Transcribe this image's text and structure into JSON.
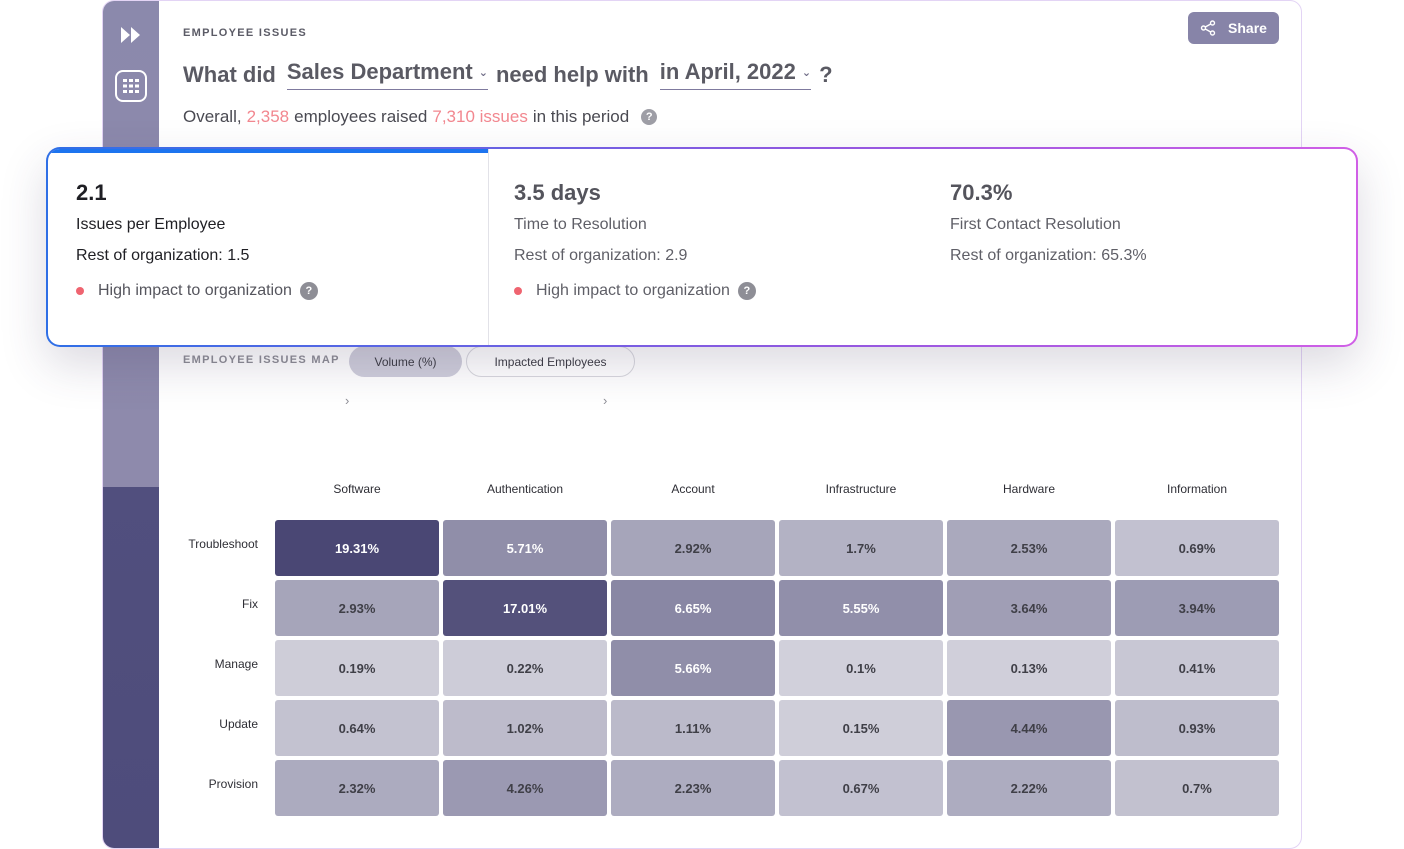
{
  "header": {
    "section_label": "EMPLOYEE ISSUES",
    "question_prefix": "What did",
    "department": "Sales Department",
    "question_middle": "need help with",
    "period": "in April, 2022",
    "question_suffix": "?",
    "overall_prefix": "Overall,",
    "employees_count": "2,358",
    "overall_middle": "employees raised",
    "issues_count": "7,310 issues",
    "overall_suffix": "in this period",
    "share_label": "Share"
  },
  "icons": {
    "sidebar_forward": "fast-forward-icon",
    "sidebar_grid": "grid-icon",
    "share": "share-icon",
    "help": "help-icon",
    "help_glyph": "?",
    "chevron": "›"
  },
  "kpis": [
    {
      "value": "2.1",
      "name": "Issues per Employee",
      "rest": "Rest of organization: 1.5",
      "impact": "High impact to organization",
      "active": true
    },
    {
      "value": "3.5 days",
      "name": "Time to Resolution",
      "rest": "Rest of organization: 2.9",
      "impact": "High impact to organization",
      "active": false
    },
    {
      "value": "70.3%",
      "name": "First Contact Resolution",
      "rest": "Rest of organization: 65.3%",
      "impact": "",
      "active": false
    }
  ],
  "map": {
    "label": "EMPLOYEE ISSUES MAP",
    "toggle_volume": "Volume (%)",
    "toggle_impacted": "Impacted Employees",
    "active_toggle": "Volume (%)"
  },
  "chart_data": {
    "type": "heatmap",
    "columns": [
      "Software",
      "Authentication",
      "Account",
      "Infrastructure",
      "Hardware",
      "Information"
    ],
    "rows": [
      "Troubleshoot",
      "Fix",
      "Manage",
      "Update",
      "Provision"
    ],
    "values": [
      [
        "19.31%",
        "5.71%",
        "2.92%",
        "1.7%",
        "2.53%",
        "0.69%"
      ],
      [
        "2.93%",
        "17.01%",
        "6.65%",
        "5.55%",
        "3.64%",
        "3.94%"
      ],
      [
        "0.19%",
        "0.22%",
        "5.66%",
        "0.1%",
        "0.13%",
        "0.41%"
      ],
      [
        "0.64%",
        "1.02%",
        "1.11%",
        "0.15%",
        "4.44%",
        "0.93%"
      ],
      [
        "2.32%",
        "4.26%",
        "2.23%",
        "0.67%",
        "2.22%",
        "0.7%"
      ]
    ],
    "color_scale": [
      "#d9d8e1",
      "#4a4774"
    ]
  },
  "colors": {
    "accent": "#8784a8",
    "highlight": "#f2878f",
    "impact_dot": "#ef6470",
    "sidebar_dark": "#4e4c7b"
  }
}
